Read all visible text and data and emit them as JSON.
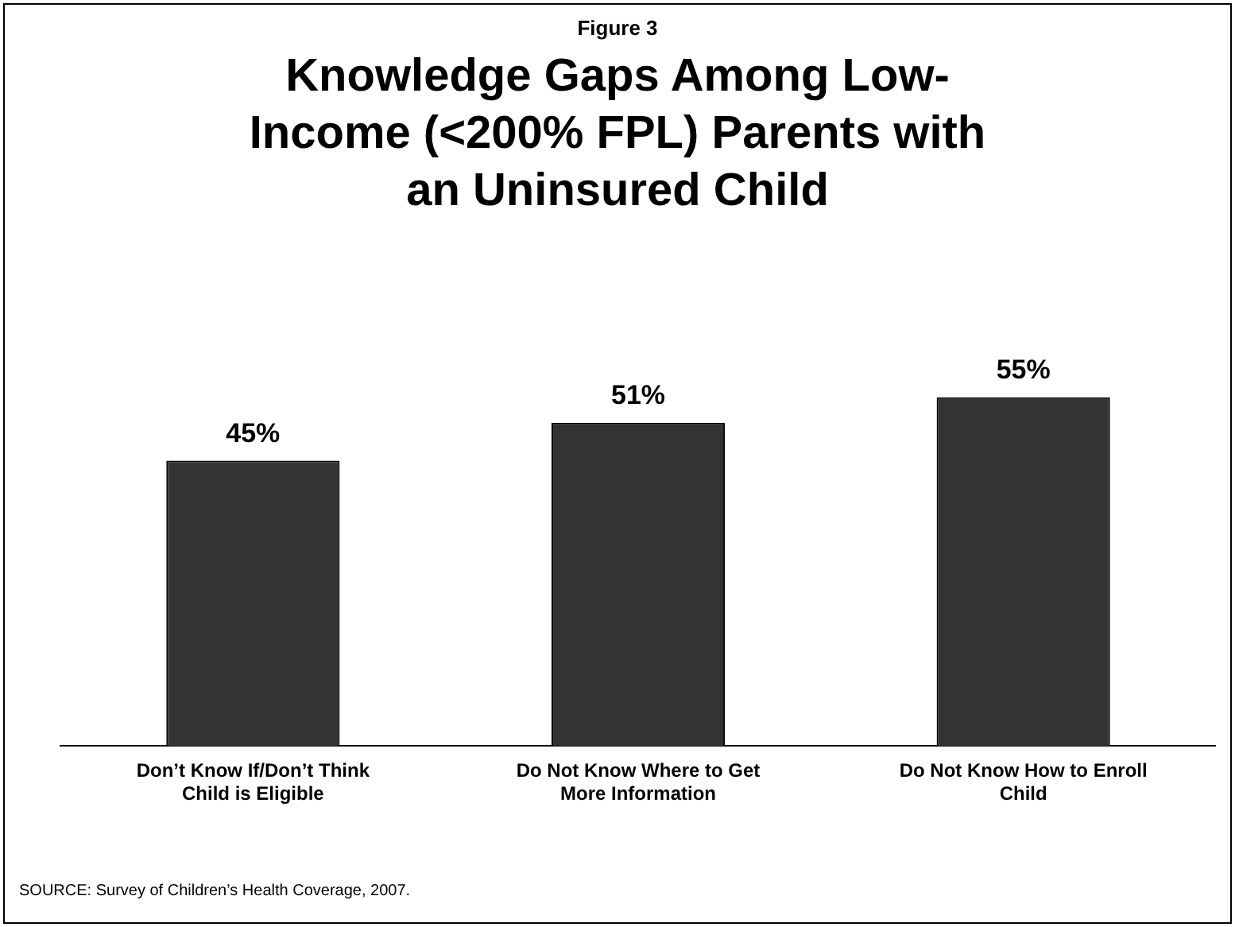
{
  "chart_data": {
    "type": "bar",
    "subtitle": "Figure 3",
    "title": "Knowledge Gaps Among Low-Income (<200% FPL) Parents with an Uninsured Child",
    "categories": [
      "Don’t Know If/Don’t Think Child is Eligible",
      "Do Not Know Where to Get More Information",
      "Do Not Know How to Enroll Child"
    ],
    "values": [
      45,
      51,
      55
    ],
    "color": "#333333",
    "data_labels": true,
    "relative": false,
    "grid": false,
    "legend": false,
    "value_labels": [
      "45%",
      "51%",
      "55%"
    ],
    "annotations": [
      "SOURCE:  Survey of Children’s Health Coverage, 2007."
    ]
  }
}
